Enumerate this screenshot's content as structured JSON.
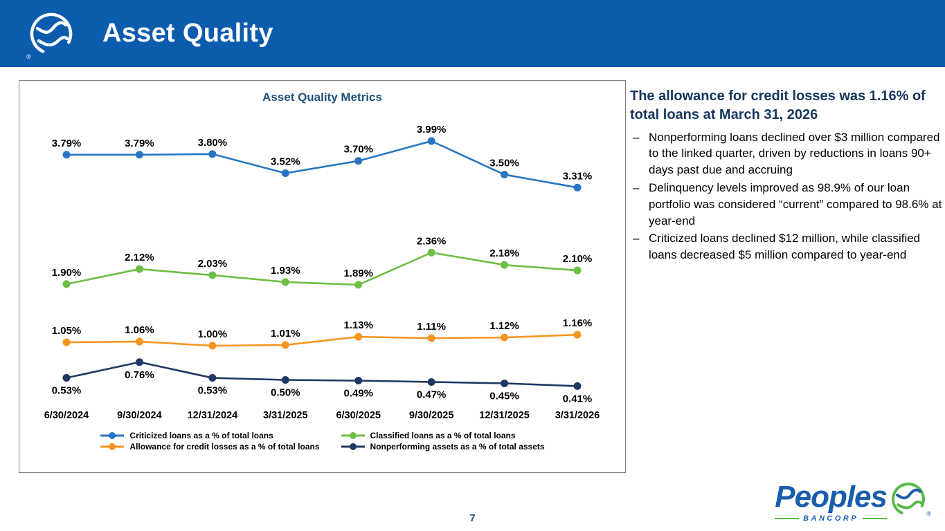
{
  "registered_mark": "®",
  "header": {
    "title": "Asset Quality"
  },
  "chart_data": {
    "type": "line",
    "title": "Asset Quality Metrics",
    "categories": [
      "6/30/2024",
      "9/30/2024",
      "12/31/2024",
      "3/31/2025",
      "6/30/2025",
      "9/30/2025",
      "12/31/2025",
      "3/31/2026"
    ],
    "series": [
      {
        "name": "Criticized loans as a % of total loans",
        "color": "#2775C3",
        "label_position": "above",
        "values": [
          3.79,
          3.79,
          3.8,
          3.52,
          3.7,
          3.99,
          3.5,
          3.31
        ]
      },
      {
        "name": "Classified loans as a % of total loans",
        "color": "#6CBE45",
        "label_position": "above",
        "values": [
          1.9,
          2.12,
          2.03,
          1.93,
          1.89,
          2.36,
          2.18,
          2.1
        ]
      },
      {
        "name": "Allowance for credit losses as a % of total loans",
        "color": "#F7941E",
        "label_position": "above",
        "values": [
          1.05,
          1.06,
          1.0,
          1.01,
          1.13,
          1.11,
          1.12,
          1.16
        ]
      },
      {
        "name": "Nonperforming assets as a % of total assets",
        "color": "#1F3864",
        "label_position": "below",
        "values": [
          0.53,
          0.76,
          0.53,
          0.5,
          0.49,
          0.47,
          0.45,
          0.41
        ]
      }
    ],
    "value_format": "percent_2dp",
    "xlabel": "",
    "ylabel": "",
    "ylim": [
      0,
      4.3
    ],
    "grid": false,
    "legend_position": "bottom"
  },
  "commentary": {
    "heading": "The allowance for credit losses was 1.16% of total loans at March 31, 2026",
    "marker": "–",
    "bullets": [
      "Nonperforming loans declined over $3 million compared to the linked quarter, driven by reductions in loans 90+ days past due and accruing",
      "Delinquency levels improved as 98.9% of our loan portfolio was considered “current” compared to 98.6% at year-end",
      "Criticized loans declined $12 million, while classified loans decreased $5 million compared to year-end"
    ]
  },
  "footer": {
    "page_number": "7",
    "logo_text": "Peoples",
    "logo_subtext": "BANCORP"
  },
  "theme": {
    "header_blue": "#0B5CAD",
    "dark_blue": "#1F4E79",
    "heading_navy": "#17375D",
    "brand_blue": "#1A5DAD",
    "brand_green": "#58B947",
    "panel_border": "#7F7F7F"
  }
}
